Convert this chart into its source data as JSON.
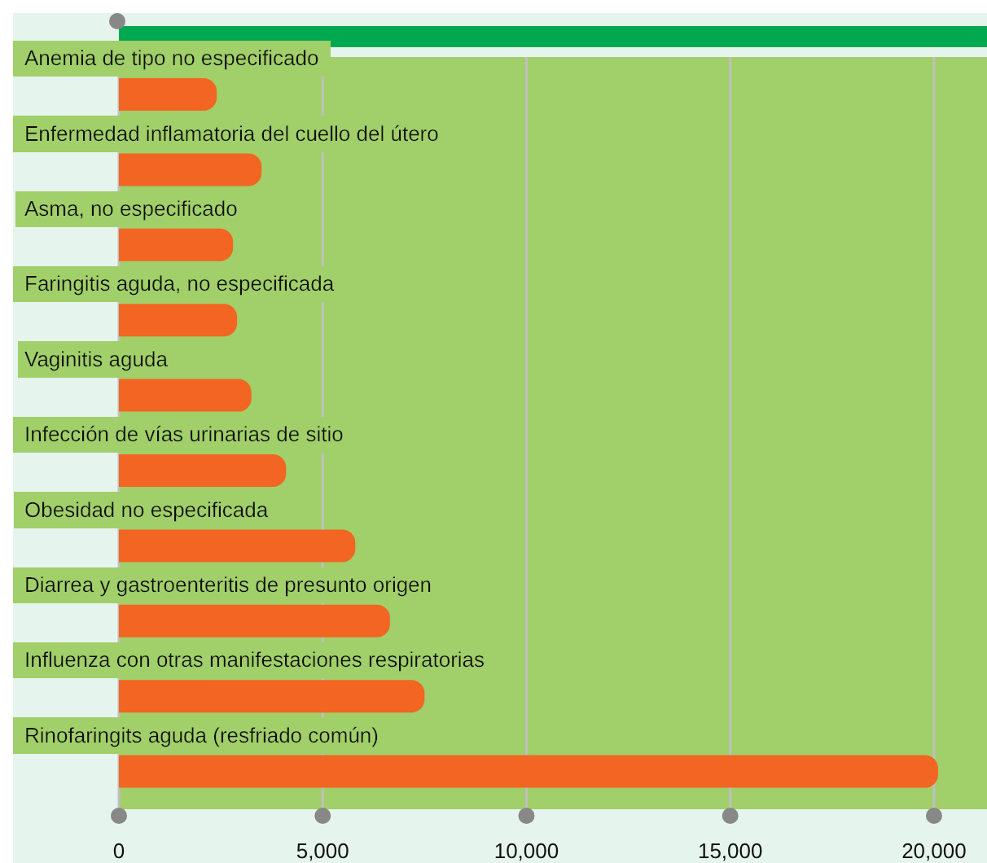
{
  "chart_data": {
    "type": "bar",
    "orientation": "horizontal",
    "categories": [
      "Anemia de tipo no especificado",
      "Enfermedad inflamatoria del cuello del útero",
      "Asma, no especificado",
      "Faringitis aguda, no especificada",
      "Vaginitis aguda",
      "Infección de vías urinarias de sitio",
      "Obesidad no especificada",
      "Diarrea y gastroenteritis de presunto origen",
      "Influenza con otras manifestaciones respiratorias",
      "Rinofaringits aguda (resfriado común)"
    ],
    "values": [
      2400,
      3500,
      2800,
      2900,
      3250,
      4100,
      5800,
      6650,
      7500,
      20100
    ],
    "color": "#f26522",
    "xlim": [
      0,
      21300
    ],
    "xticks": [
      0,
      {
        "value": 5000,
        "label": "5,000"
      },
      {
        "value": 10000,
        "label": "10,000"
      },
      {
        "value": 15000,
        "label": "15,000"
      },
      {
        "value": 20000,
        "label": "20,000"
      }
    ],
    "grid": "x",
    "legend": false
  }
}
